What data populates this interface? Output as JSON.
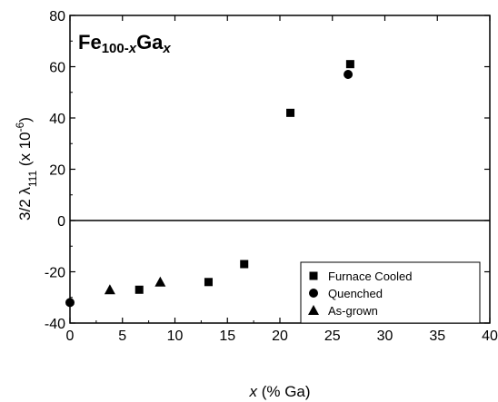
{
  "chart_data": {
    "type": "scatter",
    "title_parts": [
      {
        "text": "Fe",
        "sub": false,
        "italic": false
      },
      {
        "text": "100-",
        "sub": true,
        "italic": false
      },
      {
        "text": "x",
        "sub": true,
        "italic": true
      },
      {
        "text": "Ga",
        "sub": false,
        "italic": false
      },
      {
        "text": "x",
        "sub": true,
        "italic": true
      }
    ],
    "xlabel_parts": [
      {
        "text": "x",
        "italic": true
      },
      {
        "text": " (% Ga)",
        "italic": false
      }
    ],
    "ylabel_parts": [
      {
        "text": "3/2 ",
        "sub": false,
        "sup": false
      },
      {
        "text": "λ",
        "sub": false,
        "sup": false
      },
      {
        "text": "111",
        "sub": true,
        "sup": false
      },
      {
        "text": " (x 10",
        "sub": false,
        "sup": false
      },
      {
        "text": "-6",
        "sub": false,
        "sup": true
      },
      {
        "text": ")",
        "sub": false,
        "sup": false
      }
    ],
    "xlim": [
      0,
      40
    ],
    "ylim": [
      -40,
      80
    ],
    "xticks": [
      0,
      5,
      10,
      15,
      20,
      25,
      30,
      35,
      40
    ],
    "yticks": [
      -40,
      -20,
      0,
      20,
      40,
      60,
      80
    ],
    "xtick_labels": [
      "0",
      "5",
      "10",
      "15",
      "20",
      "25",
      "30",
      "35",
      "40"
    ],
    "ytick_labels": [
      "-40",
      "-20",
      "0",
      "20",
      "40",
      "60",
      "80"
    ],
    "zero_line": true,
    "grid": false,
    "legend_position": "lower-right",
    "series": [
      {
        "name": "Furnace Cooled",
        "marker": "square",
        "color": "#000000",
        "points": [
          [
            6.6,
            -27
          ],
          [
            13.2,
            -24
          ],
          [
            16.6,
            -17
          ],
          [
            21.0,
            42
          ],
          [
            26.7,
            61
          ]
        ]
      },
      {
        "name": "Quenched",
        "marker": "circle",
        "color": "#000000",
        "points": [
          [
            0.0,
            -32
          ],
          [
            26.5,
            57
          ]
        ]
      },
      {
        "name": "As-grown",
        "marker": "triangle",
        "color": "#000000",
        "points": [
          [
            3.8,
            -27
          ],
          [
            8.6,
            -24
          ]
        ]
      }
    ]
  }
}
